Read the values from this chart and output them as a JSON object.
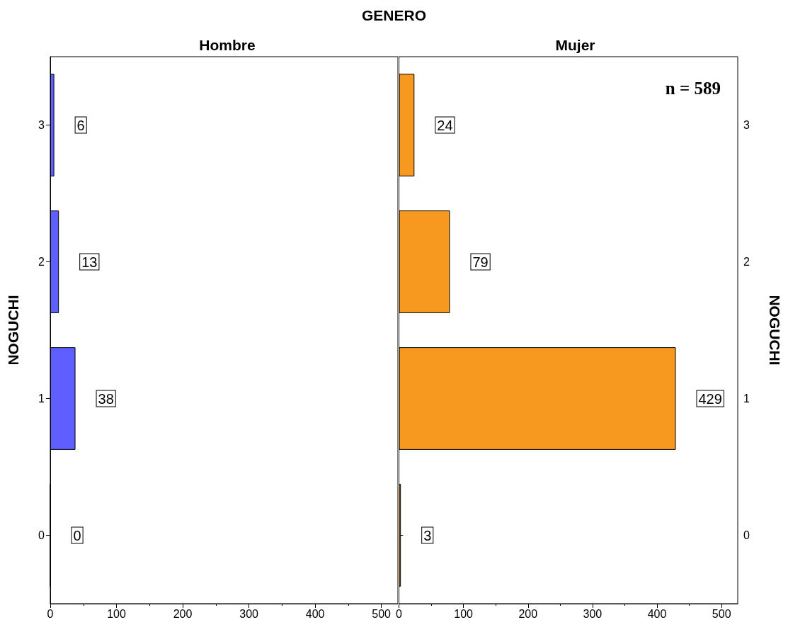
{
  "chart_data": [
    {
      "type": "bar",
      "orientation": "horizontal",
      "title": "GENERO",
      "subtitle": "Hombre",
      "ylabel": "NOGUCHI",
      "categories": [
        "3",
        "2",
        "1",
        "0"
      ],
      "values": [
        6,
        13,
        38,
        0
      ],
      "color": "#5f5fff",
      "xlim": [
        0,
        525
      ],
      "xticks": [
        0,
        100,
        200,
        300,
        400,
        500
      ],
      "data_labels": true
    },
    {
      "type": "bar",
      "orientation": "horizontal",
      "subtitle": "Mujer",
      "ylabel": "NOGUCHI",
      "categories": [
        "3",
        "2",
        "1",
        "0"
      ],
      "values": [
        24,
        79,
        429,
        3
      ],
      "color": "#f7991f",
      "xlim": [
        0,
        525
      ],
      "xticks": [
        0,
        100,
        200,
        300,
        400,
        500
      ],
      "data_labels": true,
      "annotations": [
        "n = 589"
      ]
    }
  ]
}
